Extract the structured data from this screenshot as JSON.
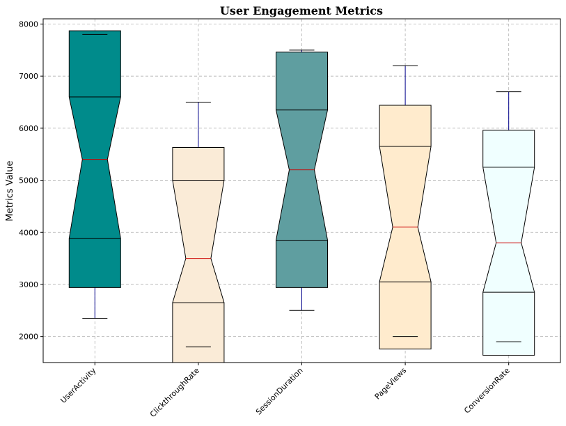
{
  "chart_data": {
    "type": "boxplot",
    "title": "User Engagement Metrics",
    "xlabel": "",
    "ylabel": "Metrics Value",
    "ylim": [
      1500,
      8100
    ],
    "yticks": [
      2000,
      3000,
      4000,
      5000,
      6000,
      7000,
      8000
    ],
    "grid": true,
    "notched": true,
    "categories": [
      "UserActivity",
      "ClickthroughRate",
      "SessionDuration",
      "PageViews",
      "ConversionRate"
    ],
    "boxes": [
      {
        "category": "UserActivity",
        "whisker_low": 2350,
        "q1": 3880,
        "median": 5400,
        "q3": 6600,
        "whisker_high": 7800,
        "notch_low": 2940,
        "notch_high": 7870,
        "color": "#008B8B"
      },
      {
        "category": "ClickthroughRate",
        "whisker_low": 1800,
        "q1": 2650,
        "median": 3500,
        "q3": 5000,
        "whisker_high": 6500,
        "notch_low": 1370,
        "notch_high": 5630,
        "color": "#FAEBD7"
      },
      {
        "category": "SessionDuration",
        "whisker_low": 2500,
        "q1": 3850,
        "median": 5200,
        "q3": 6350,
        "whisker_high": 7500,
        "notch_low": 2940,
        "notch_high": 7460,
        "color": "#5F9EA0"
      },
      {
        "category": "PageViews",
        "whisker_low": 2000,
        "q1": 3050,
        "median": 4100,
        "q3": 5650,
        "whisker_high": 7200,
        "notch_low": 1760,
        "notch_high": 6440,
        "color": "#FFEBCD"
      },
      {
        "category": "ConversionRate",
        "whisker_low": 1900,
        "q1": 2850,
        "median": 3800,
        "q3": 5250,
        "whisker_high": 6700,
        "notch_low": 1640,
        "notch_high": 5960,
        "color": "#F0FFFF"
      }
    ],
    "median_color": "#CC0000",
    "whisker_color": "#00008B"
  }
}
